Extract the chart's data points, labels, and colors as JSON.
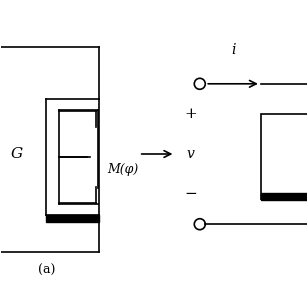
{
  "bg_color": "#ffffff",
  "line_color": "#000000",
  "font_color": "#000000",
  "label_a": "(a)",
  "label_M": "M(φ)",
  "label_i": "i",
  "label_v": "v",
  "label_plus": "+",
  "label_minus": "−",
  "label_G": "G"
}
